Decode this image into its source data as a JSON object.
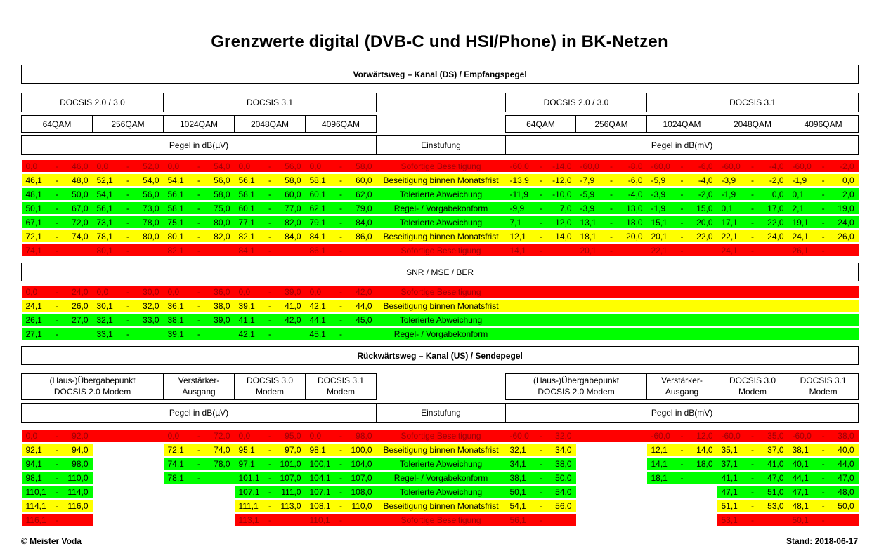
{
  "title": "Grenzwerte digital (DVB-C und HSI/Phone) in BK-Netzen",
  "labels": {
    "einstufung": "Einstufung",
    "pegel_uv": "Pegel in dB(µV)",
    "pegel_mv": "Pegel in dB(mV)"
  },
  "colors": {
    "red": "#ff0000",
    "red_text": "#9c0006",
    "yellow": "#ffff00",
    "green": "#00ff00"
  },
  "forward": {
    "title": "Vorwärtsweg – Kanal (DS) / Empfangspegel",
    "group1": "DOCSIS 2.0 / 3.0",
    "group2": "DOCSIS 3.1",
    "columns": [
      "64QAM",
      "256QAM",
      "1024QAM",
      "2048QAM",
      "4096QAM"
    ],
    "rows": [
      {
        "color": "red",
        "label": "Sofortige Beseitigung",
        "left": [
          [
            "0,0",
            "46,0"
          ],
          [
            "0,0",
            "52,0"
          ],
          [
            "0,0",
            "54,0"
          ],
          [
            "0,0",
            "56,0"
          ],
          [
            "0,0",
            "58,0"
          ]
        ],
        "right": [
          [
            "-60,0",
            "-14,0"
          ],
          [
            "-60,0",
            "-8,0"
          ],
          [
            "-60,0",
            "-6,0"
          ],
          [
            "-60,0",
            "-4,0"
          ],
          [
            "-60,0",
            "-2,0"
          ]
        ]
      },
      {
        "color": "yellow",
        "label": "Beseitigung binnen Monatsfrist",
        "left": [
          [
            "46,1",
            "48,0"
          ],
          [
            "52,1",
            "54,0"
          ],
          [
            "54,1",
            "56,0"
          ],
          [
            "56,1",
            "58,0"
          ],
          [
            "58,1",
            "60,0"
          ]
        ],
        "right": [
          [
            "-13,9",
            "-12,0"
          ],
          [
            "-7,9",
            "-6,0"
          ],
          [
            "-5,9",
            "-4,0"
          ],
          [
            "-3,9",
            "-2,0"
          ],
          [
            "-1,9",
            "0,0"
          ]
        ]
      },
      {
        "color": "green",
        "label": "Tolerierte Abweichung",
        "left": [
          [
            "48,1",
            "50,0"
          ],
          [
            "54,1",
            "56,0"
          ],
          [
            "56,1",
            "58,0"
          ],
          [
            "58,1",
            "60,0"
          ],
          [
            "60,1",
            "62,0"
          ]
        ],
        "right": [
          [
            "-11,9",
            "-10,0"
          ],
          [
            "-5,9",
            "-4,0"
          ],
          [
            "-3,9",
            "-2,0"
          ],
          [
            "-1,9",
            "0,0"
          ],
          [
            "0,1",
            "2,0"
          ]
        ]
      },
      {
        "color": "green",
        "label": "Regel- / Vorgabekonform",
        "left": [
          [
            "50,1",
            "67,0"
          ],
          [
            "56,1",
            "73,0"
          ],
          [
            "58,1",
            "75,0"
          ],
          [
            "60,1",
            "77,0"
          ],
          [
            "62,1",
            "79,0"
          ]
        ],
        "right": [
          [
            "-9,9",
            "7,0"
          ],
          [
            "-3,9",
            "13,0"
          ],
          [
            "-1,9",
            "15,0"
          ],
          [
            "0,1",
            "17,0"
          ],
          [
            "2,1",
            "19,0"
          ]
        ]
      },
      {
        "color": "green",
        "label": "Tolerierte Abweichung",
        "left": [
          [
            "67,1",
            "72,0"
          ],
          [
            "73,1",
            "78,0"
          ],
          [
            "75,1",
            "80,0"
          ],
          [
            "77,1",
            "82,0"
          ],
          [
            "79,1",
            "84,0"
          ]
        ],
        "right": [
          [
            "7,1",
            "12,0"
          ],
          [
            "13,1",
            "18,0"
          ],
          [
            "15,1",
            "20,0"
          ],
          [
            "17,1",
            "22,0"
          ],
          [
            "19,1",
            "24,0"
          ]
        ]
      },
      {
        "color": "yellow",
        "label": "Beseitigung binnen Monatsfrist",
        "left": [
          [
            "72,1",
            "74,0"
          ],
          [
            "78,1",
            "80,0"
          ],
          [
            "80,1",
            "82,0"
          ],
          [
            "82,1",
            "84,0"
          ],
          [
            "84,1",
            "86,0"
          ]
        ],
        "right": [
          [
            "12,1",
            "14,0"
          ],
          [
            "18,1",
            "20,0"
          ],
          [
            "20,1",
            "22,0"
          ],
          [
            "22,1",
            "24,0"
          ],
          [
            "24,1",
            "26,0"
          ]
        ]
      },
      {
        "color": "red",
        "label": "Sofortige Beseitigung",
        "left": [
          [
            "74,1",
            ""
          ],
          [
            "80,1",
            ""
          ],
          [
            "82,1",
            ""
          ],
          [
            "84,1",
            ""
          ],
          [
            "86,1",
            ""
          ]
        ],
        "right": [
          [
            "14,1",
            ""
          ],
          [
            "20,1",
            ""
          ],
          [
            "22,1",
            ""
          ],
          [
            "24,1",
            ""
          ],
          [
            "26,1",
            ""
          ]
        ]
      }
    ]
  },
  "snr": {
    "title": "SNR / MSE / BER",
    "rows": [
      {
        "color": "red",
        "label": "Sofortige Beseitigung",
        "left": [
          [
            "0,0",
            "24,0"
          ],
          [
            "0,0",
            "30,0"
          ],
          [
            "0,0",
            "36,0"
          ],
          [
            "0,0",
            "39,0"
          ],
          [
            "0,0",
            "42,0"
          ]
        ],
        "right": "band"
      },
      {
        "color": "yellow",
        "label": "Beseitigung binnen Monatsfrist",
        "left": [
          [
            "24,1",
            "26,0"
          ],
          [
            "30,1",
            "32,0"
          ],
          [
            "36,1",
            "38,0"
          ],
          [
            "39,1",
            "41,0"
          ],
          [
            "42,1",
            "44,0"
          ]
        ],
        "right": "band"
      },
      {
        "color": "green",
        "label": "Tolerierte Abweichung",
        "left": [
          [
            "26,1",
            "27,0"
          ],
          [
            "32,1",
            "33,0"
          ],
          [
            "38,1",
            "39,0"
          ],
          [
            "41,1",
            "42,0"
          ],
          [
            "44,1",
            "45,0"
          ]
        ],
        "right": "band"
      },
      {
        "color": "green",
        "label": "Regel- / Vorgabekonform",
        "left": [
          [
            "27,1",
            ""
          ],
          [
            "33,1",
            ""
          ],
          [
            "39,1",
            ""
          ],
          [
            "42,1",
            ""
          ],
          [
            "45,1",
            ""
          ]
        ],
        "right": "band"
      }
    ]
  },
  "reverse": {
    "title": "Rückwärtsweg – Kanal (US) / Sendepegel",
    "columns": [
      {
        "line1": "(Haus-)Übergabepunkt",
        "line2": "DOCSIS 2.0 Modem"
      },
      {
        "line1": "Verstärker-",
        "line2": "Ausgang"
      },
      {
        "line1": "DOCSIS 3.0",
        "line2": "Modem"
      },
      {
        "line1": "DOCSIS 3.1",
        "line2": "Modem"
      }
    ],
    "rows": [
      {
        "color": "red",
        "label": "Sofortige Beseitigung",
        "left": [
          [
            "0,0",
            "92,0"
          ],
          "fill",
          [
            "0,0",
            "72,0"
          ],
          [
            "0,0",
            "95,0"
          ],
          [
            "0,0",
            "98,0"
          ]
        ],
        "right": [
          [
            "-60,0",
            "32,0"
          ],
          "fill",
          [
            "-60,0",
            "12,0"
          ],
          [
            "-60,0",
            "35,0"
          ],
          [
            "-60,0",
            "38,0"
          ]
        ]
      },
      {
        "color": "yellow",
        "label": "Beseitigung binnen Monatsfrist",
        "left": [
          [
            "92,1",
            "94,0"
          ],
          "blank",
          [
            "72,1",
            "74,0"
          ],
          [
            "95,1",
            "97,0"
          ],
          [
            "98,1",
            "100,0"
          ]
        ],
        "right": [
          [
            "32,1",
            "34,0"
          ],
          "blank",
          [
            "12,1",
            "14,0"
          ],
          [
            "35,1",
            "37,0"
          ],
          [
            "38,1",
            "40,0"
          ]
        ]
      },
      {
        "color": "green",
        "label": "Tolerierte Abweichung",
        "left": [
          [
            "94,1",
            "98,0"
          ],
          "blank",
          [
            "74,1",
            "78,0"
          ],
          [
            "97,1",
            "101,0"
          ],
          [
            "100,1",
            "104,0"
          ]
        ],
        "right": [
          [
            "34,1",
            "38,0"
          ],
          "blank",
          [
            "14,1",
            "18,0"
          ],
          [
            "37,1",
            "41,0"
          ],
          [
            "40,1",
            "44,0"
          ]
        ]
      },
      {
        "color": "green",
        "label": "Regel- / Vorgabekonform",
        "left": [
          [
            "98,1",
            "110,0"
          ],
          "blank",
          [
            "78,1",
            ""
          ],
          [
            "101,1",
            "107,0"
          ],
          [
            "104,1",
            "107,0"
          ]
        ],
        "right": [
          [
            "38,1",
            "50,0"
          ],
          "blank",
          [
            "18,1",
            ""
          ],
          [
            "41,1",
            "47,0"
          ],
          [
            "44,1",
            "47,0"
          ]
        ]
      },
      {
        "color": "green",
        "label": "Tolerierte Abweichung",
        "left": [
          [
            "110,1",
            "114,0"
          ],
          "blank",
          "blank",
          [
            "107,1",
            "111,0"
          ],
          [
            "107,1",
            "108,0"
          ]
        ],
        "right": [
          [
            "50,1",
            "54,0"
          ],
          "blank",
          "blank",
          [
            "47,1",
            "51,0"
          ],
          [
            "47,1",
            "48,0"
          ]
        ]
      },
      {
        "color": "yellow",
        "label": "Beseitigung binnen Monatsfrist",
        "left": [
          [
            "114,1",
            "116,0"
          ],
          "blank",
          "blank",
          [
            "111,1",
            "113,0"
          ],
          [
            "108,1",
            "110,0"
          ]
        ],
        "right": [
          [
            "54,1",
            "56,0"
          ],
          "blank",
          "blank",
          [
            "51,1",
            "53,0"
          ],
          [
            "48,1",
            "50,0"
          ]
        ]
      },
      {
        "color": "red",
        "label": "Sofortige Beseitigung",
        "left": [
          [
            "116,1",
            ""
          ],
          "blank",
          "blank",
          [
            "113,1",
            ""
          ],
          [
            "110,1",
            ""
          ]
        ],
        "right": [
          [
            "56,1",
            ""
          ],
          "blank",
          "blank",
          [
            "53,1",
            ""
          ],
          [
            "50,1",
            ""
          ]
        ]
      }
    ]
  },
  "footer": {
    "left": "© Meister Voda",
    "right": "Stand: 2018-06-17"
  }
}
